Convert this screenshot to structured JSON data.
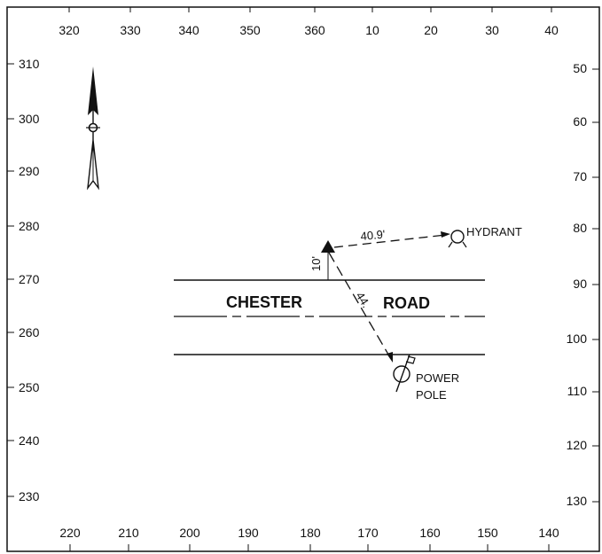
{
  "scale": {
    "top": [
      "320",
      "330",
      "340",
      "350",
      "360",
      "10",
      "20",
      "30",
      "40"
    ],
    "left": [
      "310",
      "300",
      "290",
      "280",
      "270",
      "260",
      "250",
      "240",
      "230"
    ],
    "right": [
      "50",
      "60",
      "70",
      "80",
      "90",
      "100",
      "110",
      "120",
      "130"
    ],
    "bottom": [
      "220",
      "210",
      "200",
      "190",
      "180",
      "170",
      "160",
      "150",
      "140"
    ]
  },
  "labels": {
    "street_left": "CHESTER",
    "street_right": "ROAD",
    "hydrant": "HYDRANT",
    "power_pole_line1": "POWER",
    "power_pole_line2": "POLE",
    "distance_hydrant": "40.9'",
    "distance_pole": "44.",
    "offset": "10'"
  }
}
